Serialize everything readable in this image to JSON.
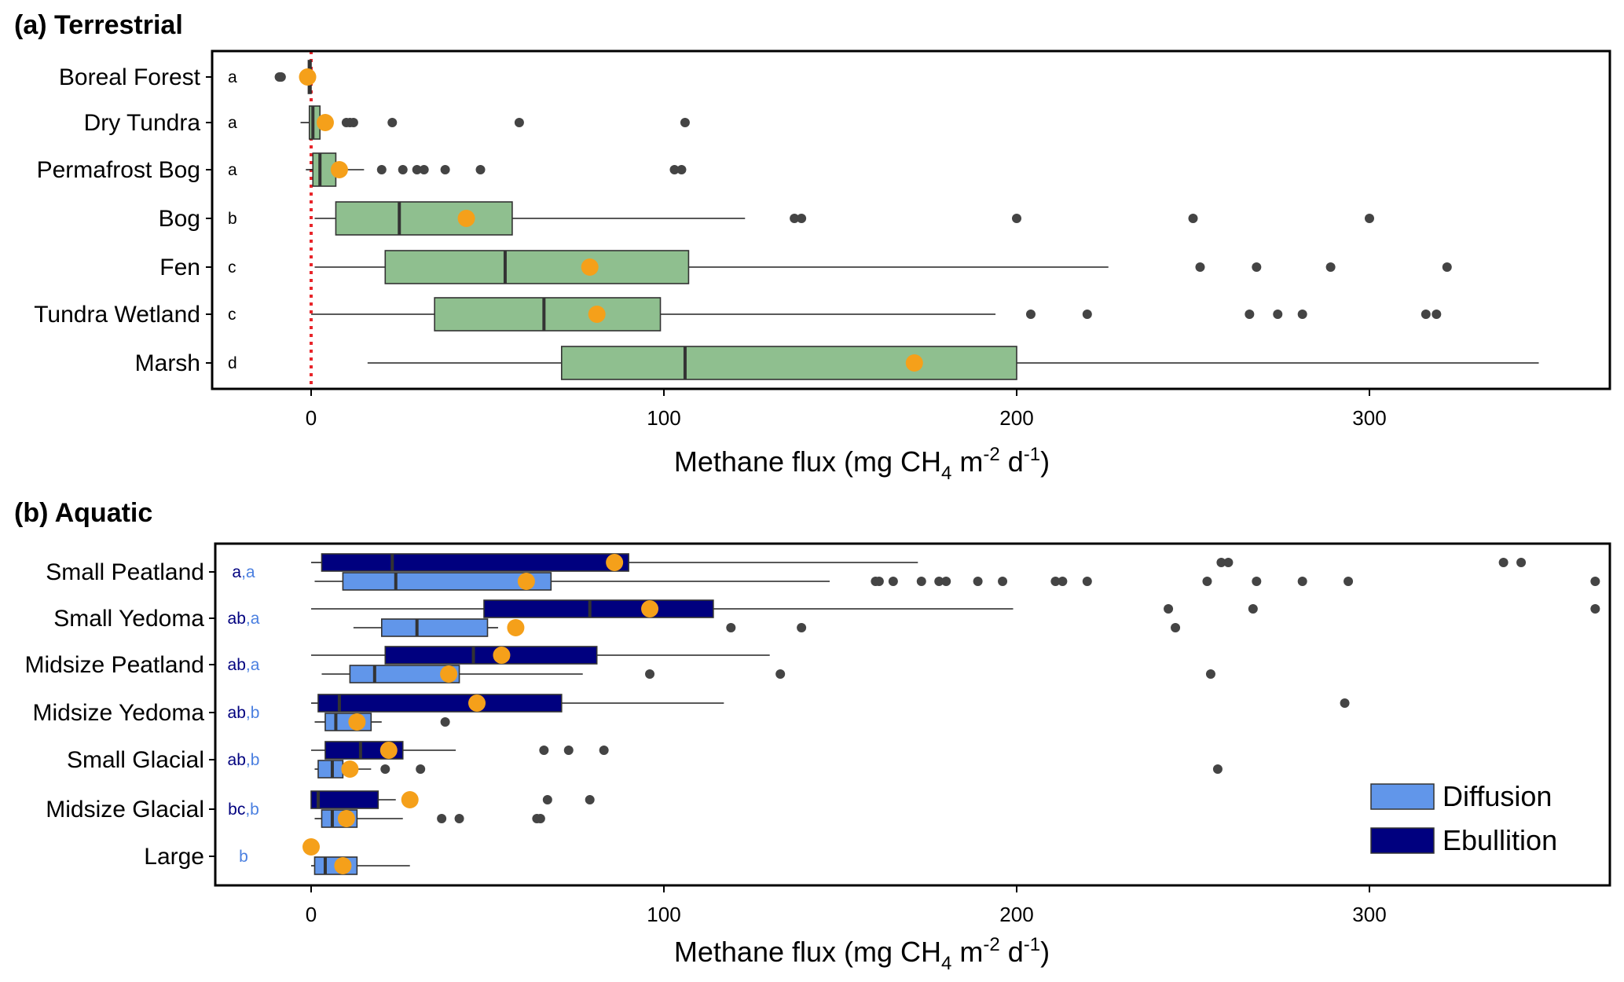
{
  "chart_data": [
    {
      "type": "box",
      "title": "(a) Terrestrial",
      "xlabel": {
        "main": "Methane flux  (mg CH",
        "sub": "4",
        "mid": " m",
        "sup1": "-2",
        "mid2": " d",
        "sup2": "-1",
        "end": ")"
      },
      "xlim": [
        -28,
        367
      ],
      "xticks": [
        0,
        100,
        200,
        300
      ],
      "zero_line": {
        "value": 0,
        "color": "#e8262b",
        "style": "dotted"
      },
      "box_color": "#8fbf8f",
      "mean_color": "#f5a01a",
      "outlier_color": "#444444",
      "categories": [
        "Boreal Forest",
        "Dry Tundra",
        "Permafrost Bog",
        "Bog",
        "Fen",
        "Tundra Wetland",
        "Marsh"
      ],
      "group_letters": [
        "a",
        "a",
        "a",
        "b",
        "c",
        "c",
        "d"
      ],
      "boxes": [
        {
          "category": "Boreal Forest",
          "whisker_low": -1.5,
          "q1": -0.8,
          "median": -0.4,
          "q3": 0,
          "whisker_high": 0.3,
          "mean": -1,
          "outliers": [
            -9,
            -8.5
          ]
        },
        {
          "category": "Dry Tundra",
          "whisker_low": -3,
          "q1": -0.5,
          "median": 0.5,
          "q3": 2.5,
          "whisker_high": 4,
          "mean": 4,
          "outliers": [
            10,
            11,
            12,
            23,
            59,
            106
          ]
        },
        {
          "category": "Permafrost Bog",
          "whisker_low": -1.5,
          "q1": 0.5,
          "median": 2.5,
          "q3": 7,
          "whisker_high": 15,
          "mean": 8,
          "outliers": [
            20,
            26,
            30,
            32,
            38,
            48,
            103,
            105
          ]
        },
        {
          "category": "Bog",
          "whisker_low": 1,
          "q1": 7,
          "median": 25,
          "q3": 57,
          "whisker_high": 123,
          "mean": 44,
          "outliers": [
            137,
            139,
            200,
            250,
            300
          ]
        },
        {
          "category": "Fen",
          "whisker_low": 1,
          "q1": 21,
          "median": 55,
          "q3": 107,
          "whisker_high": 226,
          "mean": 79,
          "outliers": [
            252,
            268,
            289,
            322
          ]
        },
        {
          "category": "Tundra Wetland",
          "whisker_low": 0,
          "q1": 35,
          "median": 66,
          "q3": 99,
          "whisker_high": 194,
          "mean": 81,
          "outliers": [
            204,
            220,
            266,
            274,
            281,
            316,
            319
          ]
        },
        {
          "category": "Marsh",
          "whisker_low": 16,
          "q1": 71,
          "median": 106,
          "q3": 200,
          "whisker_high": 348,
          "mean": 171,
          "outliers": []
        }
      ]
    },
    {
      "type": "box",
      "title": "(b) Aquatic",
      "xlabel": {
        "main": "Methane flux  (mg CH",
        "sub": "4",
        "mid": " m",
        "sup1": "-2",
        "mid2": " d",
        "sup2": "-1",
        "end": ")"
      },
      "xlim": [
        -28,
        367
      ],
      "xticks": [
        0,
        100,
        200,
        300
      ],
      "mean_color": "#f5a01a",
      "outlier_color": "#444444",
      "legend": {
        "position": "bottom-right",
        "entries": [
          {
            "label": "Diffusion",
            "color": "#6196ea"
          },
          {
            "label": "Ebullition",
            "color": "#00007f"
          }
        ]
      },
      "categories": [
        "Small Peatland",
        "Small Yedoma",
        "Midsize Peatland",
        "Midsize Yedoma",
        "Small Glacial",
        "Midsize Glacial",
        "Large"
      ],
      "group_letters": [
        {
          "ebullition": "a",
          "diffusion": "a"
        },
        {
          "ebullition": "ab",
          "diffusion": "a"
        },
        {
          "ebullition": "ab",
          "diffusion": "a"
        },
        {
          "ebullition": "ab",
          "diffusion": "b"
        },
        {
          "ebullition": "ab",
          "diffusion": "b"
        },
        {
          "ebullition": "bc",
          "diffusion": "b"
        },
        {
          "ebullition": "",
          "diffusion": "b"
        }
      ],
      "series": [
        {
          "name": "Ebullition",
          "boxes": [
            {
              "category": "Small Peatland",
              "whisker_low": 0,
              "q1": 3,
              "median": 23,
              "q3": 90,
              "whisker_high": 172,
              "mean": 86,
              "outliers": [
                258,
                260,
                338,
                343
              ]
            },
            {
              "category": "Small Yedoma",
              "whisker_low": 0,
              "q1": 49,
              "median": 79,
              "q3": 114,
              "whisker_high": 199,
              "mean": 96,
              "outliers": [
                243,
                267,
                364
              ]
            },
            {
              "category": "Midsize Peatland",
              "whisker_low": 0,
              "q1": 21,
              "median": 46,
              "q3": 81,
              "whisker_high": 130,
              "mean": 54,
              "outliers": []
            },
            {
              "category": "Midsize Yedoma",
              "whisker_low": 0,
              "q1": 2,
              "median": 8,
              "q3": 71,
              "whisker_high": 117,
              "mean": 47,
              "outliers": [
                293
              ]
            },
            {
              "category": "Small Glacial",
              "whisker_low": 0,
              "q1": 4,
              "median": 14,
              "q3": 26,
              "whisker_high": 41,
              "mean": 22,
              "outliers": [
                66,
                73,
                83
              ]
            },
            {
              "category": "Midsize Glacial",
              "whisker_low": 0,
              "q1": 0,
              "median": 2,
              "q3": 19,
              "whisker_high": 24,
              "mean": 28,
              "outliers": [
                67,
                79
              ]
            }
          ]
        },
        {
          "name": "Diffusion",
          "boxes": [
            {
              "category": "Small Peatland",
              "whisker_low": 1,
              "q1": 9,
              "median": 24,
              "q3": 68,
              "whisker_high": 147,
              "mean": 61,
              "outliers": [
                160,
                161,
                165,
                173,
                178,
                180,
                189,
                196,
                211,
                213,
                220,
                254,
                268,
                281,
                294,
                364
              ]
            },
            {
              "category": "Small Yedoma",
              "whisker_low": 12,
              "q1": 20,
              "median": 30,
              "q3": 50,
              "whisker_high": 53,
              "mean": 58,
              "outliers": [
                119,
                139,
                245
              ]
            },
            {
              "category": "Midsize Peatland",
              "whisker_low": 3,
              "q1": 11,
              "median": 18,
              "q3": 42,
              "whisker_high": 77,
              "mean": 39,
              "outliers": [
                96,
                133,
                255
              ]
            },
            {
              "category": "Midsize Yedoma",
              "whisker_low": 1,
              "q1": 4,
              "median": 7,
              "q3": 17,
              "whisker_high": 20,
              "mean": 13,
              "outliers": [
                38
              ]
            },
            {
              "category": "Small Glacial",
              "whisker_low": 1,
              "q1": 2,
              "median": 6,
              "q3": 9,
              "whisker_high": 17,
              "mean": 11,
              "outliers": [
                21,
                31,
                257
              ]
            },
            {
              "category": "Midsize Glacial",
              "whisker_low": 1,
              "q1": 3,
              "median": 6,
              "q3": 13,
              "whisker_high": 26,
              "mean": 10,
              "outliers": [
                37,
                42,
                64,
                65
              ]
            },
            {
              "category": "Large",
              "whisker_low": 0,
              "q1": 1,
              "median": 4,
              "q3": 13,
              "whisker_high": 28,
              "mean": 9,
              "outliers": []
            }
          ]
        }
      ],
      "extra_means": [
        {
          "category": "Large",
          "series": "Ebullition",
          "mean": 0
        }
      ]
    }
  ]
}
